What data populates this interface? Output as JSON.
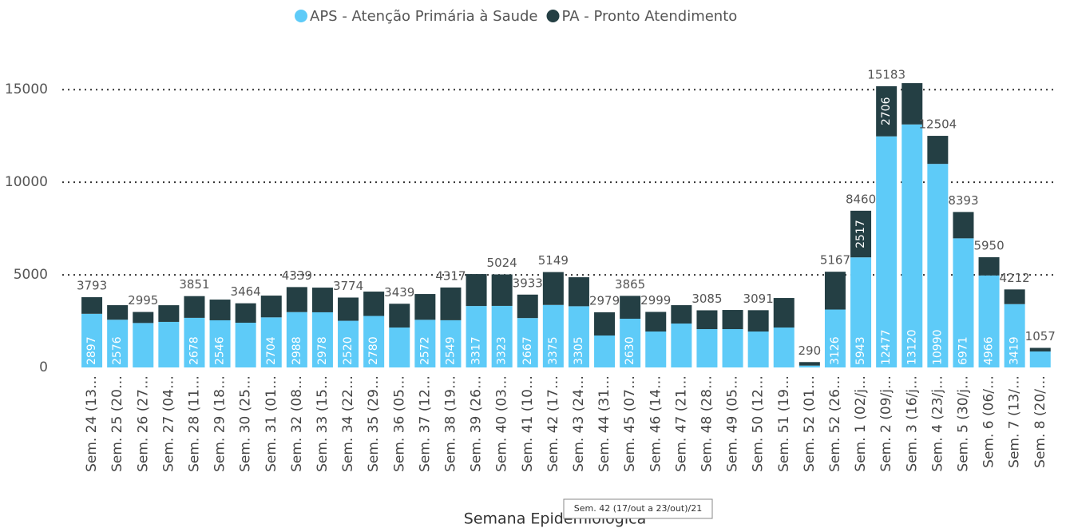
{
  "chart_data": {
    "type": "stacked-bar",
    "legend_position": "top",
    "x_label": "Semana Epidemiológica",
    "tooltip": "Sem. 42 (17/out a 23/out)/21",
    "categories": [
      "Sem. 24 (13…",
      "Sem. 25 (20…",
      "Sem. 26 (27…",
      "Sem. 27 (04…",
      "Sem. 28 (11…",
      "Sem. 29 (18…",
      "Sem. 30 (25…",
      "Sem. 31 (01…",
      "Sem. 32 (08…",
      "Sem. 33 (15…",
      "Sem. 34 (22…",
      "Sem. 35 (29…",
      "Sem. 36 (05…",
      "Sem. 37 (12…",
      "Sem. 38 (19…",
      "Sem. 39 (26…",
      "Sem. 40 (03…",
      "Sem. 41 (10…",
      "Sem. 42 (17…",
      "Sem. 43 (24…",
      "Sem. 44 (31…",
      "Sem. 45 (07…",
      "Sem. 46 (14…",
      "Sem. 47 (21…",
      "Sem. 48 (28…",
      "Sem. 49 (05…",
      "Sem. 50 (12…",
      "Sem. 51 (19…",
      "Sem. 52 (01…",
      "Sem. 52 (26…",
      "Sem. 1 (02/j…",
      "Sem. 2 (09/j…",
      "Sem. 3 (16/j…",
      "Sem. 4 (23/j…",
      "Sem. 5 (30/j…",
      "Sem. 6 (06/…",
      "Sem. 7 (13/…",
      "Sem. 8 (20/…"
    ],
    "series": [
      {
        "name": "APS - Atenção Primária à Saude",
        "color": "#5ecbf8",
        "values": [
          2897,
          2576,
          2400,
          2460,
          2678,
          2546,
          2414,
          2704,
          2988,
          2978,
          2520,
          2780,
          2155,
          2572,
          2549,
          3317,
          3323,
          2667,
          3375,
          3305,
          1724,
          2630,
          1940,
          2370,
          2069,
          2069,
          1940,
          2155,
          100,
          3126,
          5943,
          12477,
          13120,
          10990,
          6971,
          4966,
          3419,
          862
        ],
        "value_labels": [
          "2897",
          "2576",
          null,
          null,
          "2678",
          "2546",
          null,
          "2704",
          "2988",
          "2978",
          "2520",
          "2780",
          null,
          "2572",
          "2549",
          "3317",
          "3323",
          "2667",
          "3375",
          "3305",
          null,
          "2630",
          null,
          null,
          null,
          null,
          null,
          null,
          null,
          "3126",
          "5943",
          "12477",
          "13120",
          "10990",
          "6971",
          "4966",
          "3419",
          null
        ]
      },
      {
        "name": "PA - Pronto Atendimento",
        "color": "#243f44",
        "values": [
          896,
          786,
          595,
          900,
          1173,
          1118,
          1050,
          1175,
          1351,
          1332,
          1254,
          1315,
          1284,
          1393,
          1768,
          1726,
          1701,
          1266,
          1774,
          1565,
          1255,
          1235,
          1059,
          992,
          1016,
          1034,
          1151,
          1595,
          190,
          2041,
          2517,
          2706,
          2230,
          1514,
          1422,
          984,
          793,
          195
        ],
        "value_labels": [
          null,
          null,
          null,
          null,
          null,
          null,
          null,
          null,
          null,
          null,
          null,
          null,
          null,
          null,
          null,
          null,
          null,
          null,
          null,
          null,
          null,
          null,
          null,
          null,
          null,
          null,
          null,
          null,
          null,
          null,
          "2517",
          "2706",
          null,
          null,
          null,
          null,
          null,
          null
        ]
      }
    ],
    "totals": [
      3793,
      null,
      2995,
      null,
      3851,
      null,
      3464,
      null,
      4339,
      null,
      3774,
      null,
      3439,
      null,
      4317,
      null,
      5024,
      3933,
      5149,
      null,
      2979,
      3865,
      2999,
      null,
      3085,
      null,
      3091,
      null,
      290,
      5167,
      8460,
      15183,
      null,
      12504,
      8393,
      5950,
      4212,
      1057
    ],
    "ylim": [
      0,
      16000
    ],
    "yticks": [
      0,
      5000,
      10000,
      15000
    ],
    "grid": true
  }
}
